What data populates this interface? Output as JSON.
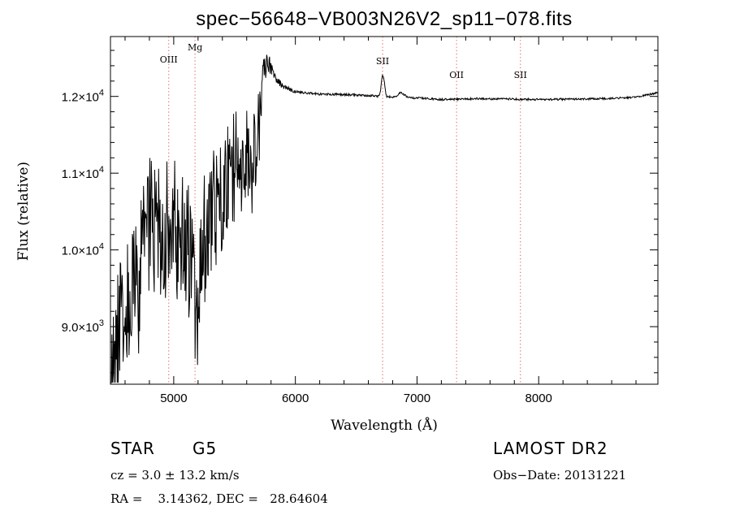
{
  "colors": {
    "background": "#ffffff",
    "axis": "#000000",
    "spectrum": "#000000",
    "line_marker": "#e05050"
  },
  "chart_data": {
    "type": "line",
    "title": "spec−56648−VB003N26V2_sp11−078.fits",
    "xlabel": "Wavelength (Å)",
    "ylabel": "Flux (relative)",
    "xlim": [
      4480,
      8980
    ],
    "ylim": [
      8250,
      12780
    ],
    "grid": false,
    "x_ticks": [
      {
        "value": 5000,
        "label": "5000"
      },
      {
        "value": 6000,
        "label": "6000"
      },
      {
        "value": 7000,
        "label": "7000"
      },
      {
        "value": 8000,
        "label": "8000"
      }
    ],
    "y_ticks": [
      {
        "value": 9000,
        "mant": "9.0",
        "exp": "3"
      },
      {
        "value": 10000,
        "mant": "1.0",
        "exp": "4"
      },
      {
        "value": 11000,
        "mant": "1.1",
        "exp": "4"
      },
      {
        "value": 12000,
        "mant": "1.2",
        "exp": "4"
      }
    ],
    "line_markers": [
      {
        "label": "OIII",
        "x": 4959
      },
      {
        "label": "Mg",
        "x": 5175
      },
      {
        "label": "SII",
        "x": 6717
      },
      {
        "label": "OII",
        "x": 7325
      },
      {
        "label": "SII",
        "x": 7850
      }
    ],
    "spectrum": {
      "noise_seed": 56648,
      "anchors": [
        [
          4480,
          8700
        ],
        [
          4600,
          9150
        ],
        [
          4700,
          9700
        ],
        [
          4800,
          10300
        ],
        [
          4900,
          10250
        ],
        [
          5000,
          10300
        ],
        [
          5100,
          10050
        ],
        [
          5200,
          9750
        ],
        [
          5300,
          10500
        ],
        [
          5400,
          10700
        ],
        [
          5500,
          11050
        ],
        [
          5600,
          11150
        ],
        [
          5700,
          11550
        ],
        [
          5760,
          12500
        ],
        [
          5820,
          12280
        ],
        [
          5900,
          12120
        ],
        [
          6000,
          12060
        ],
        [
          6200,
          12030
        ],
        [
          6500,
          12020
        ],
        [
          6800,
          11990
        ],
        [
          7000,
          11980
        ],
        [
          7200,
          11960
        ],
        [
          7500,
          11970
        ],
        [
          7800,
          11965
        ],
        [
          8000,
          11960
        ],
        [
          8300,
          11965
        ],
        [
          8600,
          11975
        ],
        [
          8800,
          11990
        ],
        [
          8980,
          12050
        ]
      ],
      "noise": [
        [
          4480,
          900
        ],
        [
          5000,
          900
        ],
        [
          5300,
          850
        ],
        [
          5600,
          700
        ],
        [
          5700,
          550
        ],
        [
          5760,
          180
        ],
        [
          5820,
          60
        ],
        [
          6000,
          15
        ],
        [
          8980,
          12
        ]
      ],
      "features": [
        {
          "x": 6715,
          "amp": 260,
          "width": 10
        },
        {
          "x": 6732,
          "amp": 120,
          "width": 8
        },
        {
          "x": 6870,
          "amp": 60,
          "width": 25
        },
        {
          "x": 5180,
          "amp": -750,
          "width": 18
        },
        {
          "x": 4500,
          "amp": -300,
          "width": 15
        }
      ]
    }
  },
  "info": {
    "object_type": "STAR",
    "subclass": "G5",
    "survey": "LAMOST DR2",
    "cz": "cz = 3.0 ± 13.2 km/s",
    "obs_date": "Obs−Date: 20131221",
    "coords": "RA =    3.14362, DEC =   28.64604"
  }
}
